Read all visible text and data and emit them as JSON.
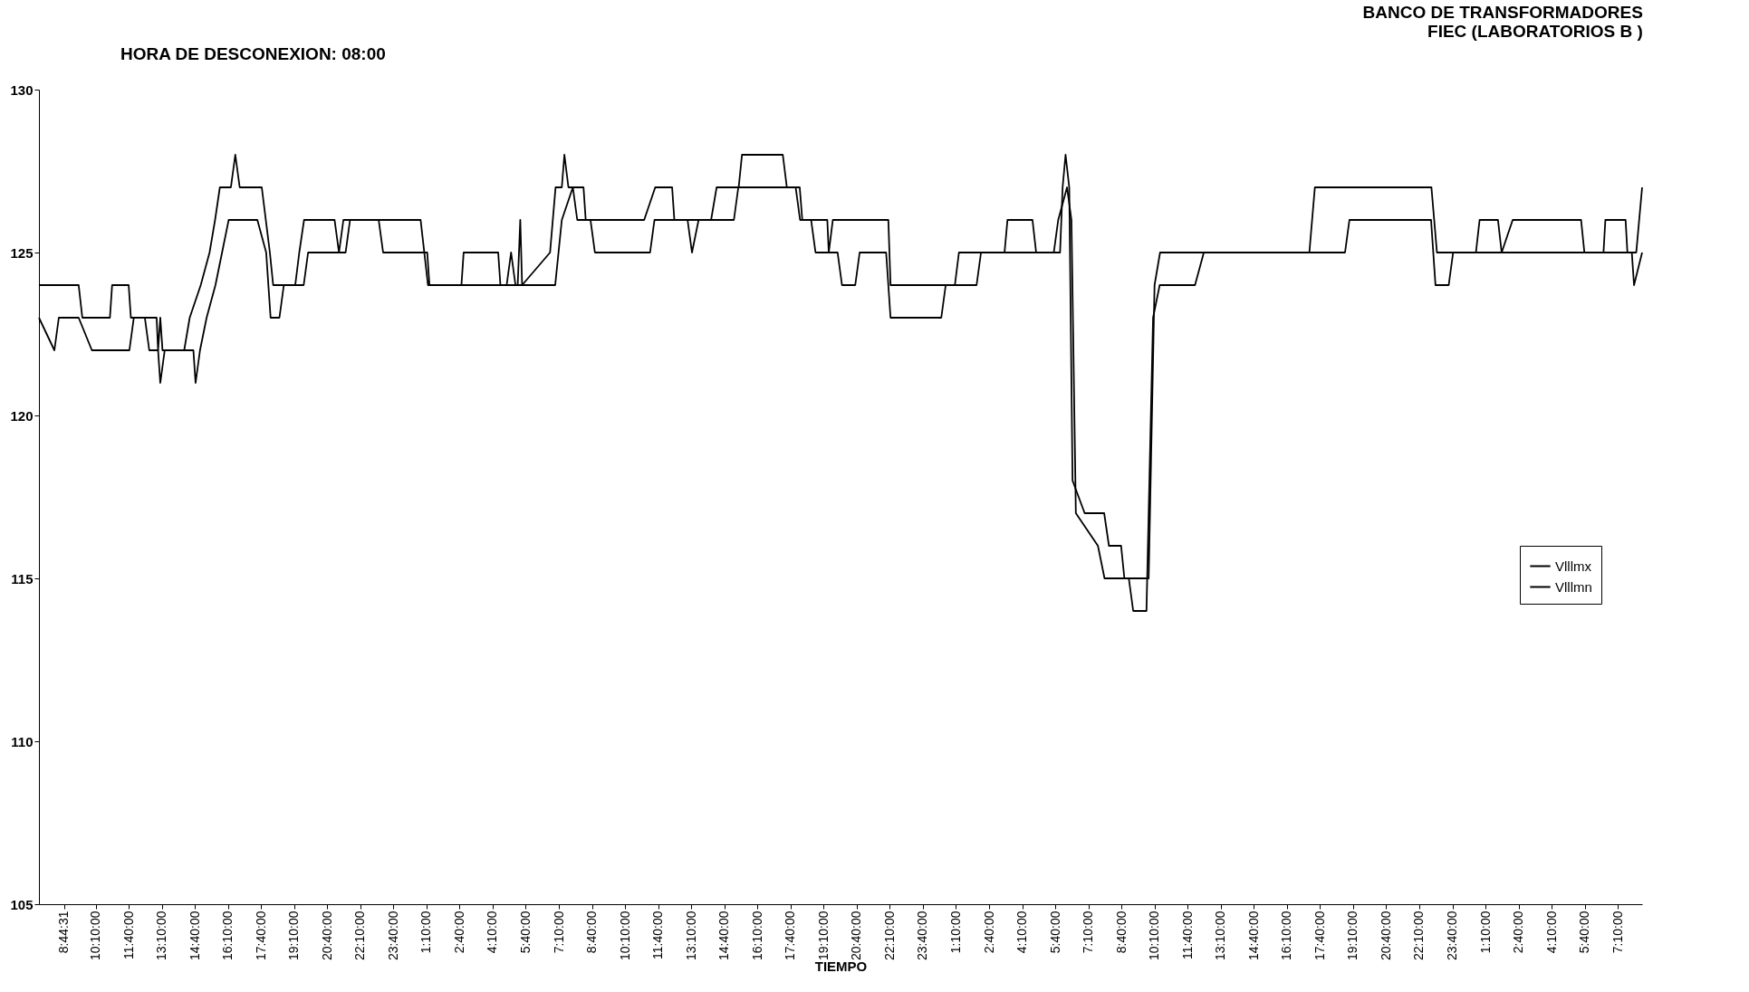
{
  "chart_data": {
    "type": "line",
    "title": "BANCO DE TRANSFORMADORES\nFIEC (LABORATORIOS B )",
    "xlabel": "TIEMPO",
    "annotations": [
      "HORA DE DESCONEXION: 08:00"
    ],
    "xlim": [
      "2000-01-01T07:36",
      "2000-01-04T08:16"
    ],
    "ylim": [
      105,
      130
    ],
    "yticks": [
      105,
      110,
      115,
      120,
      125,
      130
    ],
    "xticks": [
      {
        "value": "2000-01-01T08:44:31",
        "label": "8:44:31"
      },
      {
        "value": "2000-01-01T10:10",
        "label": "10:10:00"
      },
      {
        "value": "2000-01-01T11:40",
        "label": "11:40:00"
      },
      {
        "value": "2000-01-01T13:10",
        "label": "13:10:00"
      },
      {
        "value": "2000-01-01T14:40",
        "label": "14:40:00"
      },
      {
        "value": "2000-01-01T16:10",
        "label": "16:10:00"
      },
      {
        "value": "2000-01-01T17:40",
        "label": "17:40:00"
      },
      {
        "value": "2000-01-01T19:10",
        "label": "19:10:00"
      },
      {
        "value": "2000-01-01T20:40",
        "label": "20:40:00"
      },
      {
        "value": "2000-01-01T22:10",
        "label": "22:10:00"
      },
      {
        "value": "2000-01-01T23:40",
        "label": "23:40:00"
      },
      {
        "value": "2000-01-02T01:10",
        "label": "1:10:00"
      },
      {
        "value": "2000-01-02T02:40",
        "label": "2:40:00"
      },
      {
        "value": "2000-01-02T04:10",
        "label": "4:10:00"
      },
      {
        "value": "2000-01-02T05:40",
        "label": "5:40:00"
      },
      {
        "value": "2000-01-02T07:10",
        "label": "7:10:00"
      },
      {
        "value": "2000-01-02T08:40",
        "label": "8:40:00"
      },
      {
        "value": "2000-01-02T10:10",
        "label": "10:10:00"
      },
      {
        "value": "2000-01-02T11:40",
        "label": "11:40:00"
      },
      {
        "value": "2000-01-02T13:10",
        "label": "13:10:00"
      },
      {
        "value": "2000-01-02T14:40",
        "label": "14:40:00"
      },
      {
        "value": "2000-01-02T16:10",
        "label": "16:10:00"
      },
      {
        "value": "2000-01-02T17:40",
        "label": "17:40:00"
      },
      {
        "value": "2000-01-02T19:10",
        "label": "19:10:00"
      },
      {
        "value": "2000-01-02T20:40",
        "label": "20:40:00"
      },
      {
        "value": "2000-01-02T22:10",
        "label": "22:10:00"
      },
      {
        "value": "2000-01-02T23:40",
        "label": "23:40:00"
      },
      {
        "value": "2000-01-03T01:10",
        "label": "1:10:00"
      },
      {
        "value": "2000-01-03T02:40",
        "label": "2:40:00"
      },
      {
        "value": "2000-01-03T04:10",
        "label": "4:10:00"
      },
      {
        "value": "2000-01-03T05:40",
        "label": "5:40:00"
      },
      {
        "value": "2000-01-03T07:10",
        "label": "7:10:00"
      },
      {
        "value": "2000-01-03T08:40",
        "label": "8:40:00"
      },
      {
        "value": "2000-01-03T10:10",
        "label": "10:10:00"
      },
      {
        "value": "2000-01-03T11:40",
        "label": "11:40:00"
      },
      {
        "value": "2000-01-03T13:10",
        "label": "13:10:00"
      },
      {
        "value": "2000-01-03T14:40",
        "label": "14:40:00"
      },
      {
        "value": "2000-01-03T16:10",
        "label": "16:10:00"
      },
      {
        "value": "2000-01-03T17:40",
        "label": "17:40:00"
      },
      {
        "value": "2000-01-03T19:10",
        "label": "19:10:00"
      },
      {
        "value": "2000-01-03T20:40",
        "label": "20:40:00"
      },
      {
        "value": "2000-01-03T22:10",
        "label": "22:10:00"
      },
      {
        "value": "2000-01-03T23:40",
        "label": "23:40:00"
      },
      {
        "value": "2000-01-04T01:10",
        "label": "1:10:00"
      },
      {
        "value": "2000-01-04T02:40",
        "label": "2:40:00"
      },
      {
        "value": "2000-01-04T04:10",
        "label": "4:10:00"
      },
      {
        "value": "2000-01-04T05:40",
        "label": "5:40:00"
      },
      {
        "value": "2000-01-04T07:10",
        "label": "7:10:00"
      }
    ],
    "grid": false,
    "legend": "right",
    "line_style": "solid",
    "series": [
      {
        "name": "Vlllmx",
        "color": "#000000",
        "x": [
          "2000-01-01T07:36",
          "2000-01-01T09:24",
          "2000-01-01T09:34",
          "2000-01-01T10:49",
          "2000-01-01T10:55",
          "2000-01-01T11:40",
          "2000-01-01T11:46",
          "2000-01-01T12:56",
          "2000-01-01T13:00",
          "2000-01-01T13:06",
          "2000-01-01T13:12",
          "2000-01-01T14:11",
          "2000-01-01T14:26",
          "2000-01-01T14:56",
          "2000-01-01T15:20",
          "2000-01-01T15:35",
          "2000-01-01T15:48",
          "2000-01-01T16:18",
          "2000-01-01T16:30",
          "2000-01-01T16:42",
          "2000-01-01T17:42",
          "2000-01-01T18:04",
          "2000-01-01T18:13",
          "2000-01-01T19:13",
          "2000-01-01T19:24",
          "2000-01-01T19:37",
          "2000-01-01T21:00",
          "2000-01-01T21:12",
          "2000-01-01T21:24",
          "2000-01-02T00:54",
          "2000-01-02T01:14",
          "2000-01-02T02:45",
          "2000-01-02T02:51",
          "2000-01-02T04:25",
          "2000-01-02T04:31",
          "2000-01-02T05:18",
          "2000-01-02T05:25",
          "2000-01-02T05:30",
          "2000-01-02T06:46",
          "2000-01-02T07:01",
          "2000-01-02T07:18",
          "2000-01-02T07:25",
          "2000-01-02T07:36",
          "2000-01-02T08:17",
          "2000-01-02T08:23",
          "2000-01-02T11:02",
          "2000-01-02T11:32",
          "2000-01-02T12:18",
          "2000-01-02T12:24",
          "2000-01-02T14:04",
          "2000-01-02T14:19",
          "2000-01-02T15:19",
          "2000-01-02T15:28",
          "2000-01-02T17:19",
          "2000-01-02T17:30",
          "2000-01-02T18:05",
          "2000-01-02T18:12",
          "2000-01-02T19:20",
          "2000-01-02T19:24",
          "2000-01-02T19:35",
          "2000-01-02T22:06",
          "2000-01-02T22:12",
          "2000-01-03T01:07",
          "2000-01-03T01:18",
          "2000-01-03T03:22",
          "2000-01-03T03:30",
          "2000-01-03T04:38",
          "2000-01-03T04:48",
          "2000-01-03T05:53",
          "2000-01-03T06:00",
          "2000-01-03T06:08",
          "2000-01-03T06:18",
          "2000-01-03T06:27",
          "2000-01-03T07:00",
          "2000-01-03T07:53",
          "2000-01-03T08:06",
          "2000-01-03T08:39",
          "2000-01-03T08:48",
          "2000-01-03T09:54",
          "2000-01-03T10:10",
          "2000-01-03T10:25",
          "2000-01-03T12:10",
          "2000-01-03T17:11",
          "2000-01-03T17:26",
          "2000-01-03T22:43",
          "2000-01-03T22:58",
          "2000-01-04T00:44",
          "2000-01-04T00:54",
          "2000-01-04T01:44",
          "2000-01-04T01:54",
          "2000-01-04T02:24",
          "2000-01-04T05:30",
          "2000-01-04T05:39",
          "2000-01-04T06:31",
          "2000-01-04T06:36",
          "2000-01-04T07:31",
          "2000-01-04T07:36",
          "2000-01-04T08:00",
          "2000-01-04T08:16"
        ],
        "values": [
          124,
          124,
          123,
          123,
          124,
          124,
          123,
          123,
          122,
          123,
          122,
          122,
          123,
          124,
          125,
          126,
          127,
          127,
          128,
          127,
          127,
          125,
          124,
          124,
          125,
          126,
          126,
          125,
          126,
          126,
          124,
          124,
          125,
          125,
          124,
          124,
          126,
          124,
          125,
          127,
          127,
          128,
          127,
          127,
          126,
          126,
          127,
          127,
          126,
          126,
          127,
          127,
          128,
          128,
          127,
          127,
          126,
          126,
          125,
          126,
          126,
          124,
          124,
          125,
          125,
          126,
          126,
          125,
          125,
          127,
          128,
          127,
          118,
          117,
          117,
          116,
          116,
          115,
          115,
          124,
          125,
          125,
          125,
          127,
          127,
          125,
          125,
          126,
          126,
          125,
          126,
          126,
          125,
          125,
          126,
          126,
          125,
          125,
          127
        ]
      },
      {
        "name": "Vlllmn",
        "color": "#000000",
        "x": [
          "2000-01-01T07:36",
          "2000-01-01T08:18",
          "2000-01-01T08:30",
          "2000-01-01T09:24",
          "2000-01-01T10:00",
          "2000-01-01T11:42",
          "2000-01-01T11:54",
          "2000-01-01T12:24",
          "2000-01-01T12:36",
          "2000-01-01T13:00",
          "2000-01-01T13:06",
          "2000-01-01T13:18",
          "2000-01-01T14:36",
          "2000-01-01T14:42",
          "2000-01-01T14:54",
          "2000-01-01T15:12",
          "2000-01-01T15:36",
          "2000-01-01T15:54",
          "2000-01-01T16:12",
          "2000-01-01T17:30",
          "2000-01-01T17:54",
          "2000-01-01T18:06",
          "2000-01-01T18:30",
          "2000-01-01T18:42",
          "2000-01-01T19:36",
          "2000-01-01T19:48",
          "2000-01-01T21:30",
          "2000-01-01T21:42",
          "2000-01-01T23:00",
          "2000-01-01T23:12",
          "2000-01-02T01:12",
          "2000-01-02T01:18",
          "2000-01-02T04:48",
          "2000-01-02T05:00",
          "2000-01-02T05:12",
          "2000-01-02T07:00",
          "2000-01-02T07:18",
          "2000-01-02T07:48",
          "2000-01-02T08:00",
          "2000-01-02T08:36",
          "2000-01-02T08:48",
          "2000-01-02T11:18",
          "2000-01-02T11:30",
          "2000-01-02T13:00",
          "2000-01-02T13:12",
          "2000-01-02T13:30",
          "2000-01-02T15:06",
          "2000-01-02T15:18",
          "2000-01-02T17:54",
          "2000-01-02T18:06",
          "2000-01-02T18:36",
          "2000-01-02T18:48",
          "2000-01-02T19:48",
          "2000-01-02T20:00",
          "2000-01-02T20:36",
          "2000-01-02T20:48",
          "2000-01-02T22:00",
          "2000-01-02T22:12",
          "2000-01-03T00:30",
          "2000-01-03T00:42",
          "2000-01-03T02:06",
          "2000-01-03T02:18",
          "2000-01-03T05:36",
          "2000-01-03T05:48",
          "2000-01-03T06:12",
          "2000-01-03T06:24",
          "2000-01-03T06:36",
          "2000-01-03T07:36",
          "2000-01-03T07:54",
          "2000-01-03T09:00",
          "2000-01-03T09:12",
          "2000-01-03T09:48",
          "2000-01-03T10:06",
          "2000-01-03T10:24",
          "2000-01-03T12:00",
          "2000-01-03T12:24",
          "2000-01-03T18:48",
          "2000-01-03T19:00",
          "2000-01-03T22:42",
          "2000-01-03T22:54",
          "2000-01-03T23:30",
          "2000-01-03T23:42",
          "2000-01-04T07:48",
          "2000-01-04T07:54",
          "2000-01-04T08:16"
        ],
        "values": [
          123,
          122,
          123,
          123,
          122,
          122,
          123,
          123,
          122,
          122,
          121,
          122,
          122,
          121,
          122,
          123,
          124,
          125,
          126,
          126,
          125,
          123,
          123,
          124,
          124,
          125,
          125,
          126,
          126,
          125,
          125,
          124,
          124,
          125,
          124,
          124,
          126,
          127,
          126,
          126,
          125,
          125,
          126,
          126,
          125,
          126,
          126,
          127,
          127,
          126,
          126,
          125,
          125,
          124,
          124,
          125,
          125,
          123,
          123,
          124,
          124,
          125,
          125,
          126,
          127,
          126,
          117,
          116,
          115,
          115,
          114,
          114,
          123,
          124,
          124,
          125,
          125,
          126,
          126,
          124,
          124,
          125,
          125,
          124,
          125
        ]
      }
    ]
  }
}
